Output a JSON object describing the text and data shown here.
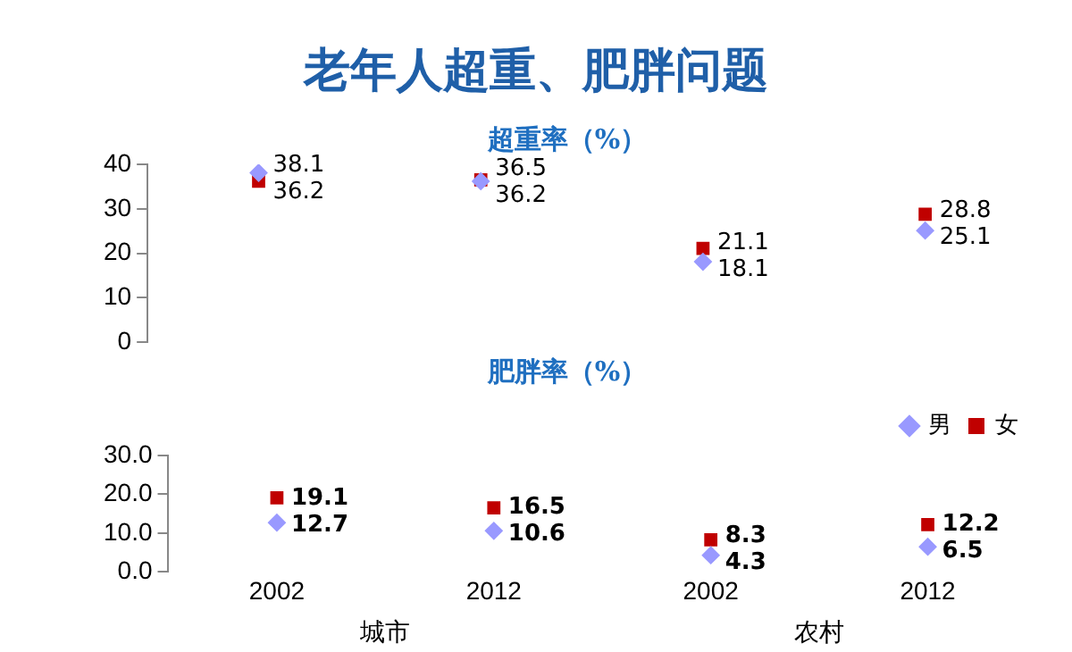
{
  "chart_data": [
    {
      "type": "scatter",
      "title": "老年人超重、肥胖问题",
      "subtitle": "超重率（%）",
      "categories": [
        "2002",
        "2012",
        "2002",
        "2012"
      ],
      "series": [
        {
          "color": "#9999ff",
          "marker": "diamond",
          "values": [
            38.1,
            36.2,
            18.1,
            25.1
          ]
        },
        {
          "color": "#c00000",
          "marker": "square",
          "values": [
            36.2,
            36.5,
            21.1,
            28.8
          ]
        }
      ],
      "ylim": [
        0,
        40
      ],
      "yticks": [
        0,
        10,
        20,
        30,
        40
      ],
      "grid": false,
      "legend": false,
      "data_labels": true,
      "tick_labels": "y"
    },
    {
      "type": "scatter",
      "title": "肥胖率（%）",
      "categories": [
        "2002",
        "2012",
        "2002",
        "2012"
      ],
      "series": [
        {
          "name": "男",
          "color": "#9999ff",
          "marker": "diamond",
          "values": [
            12.7,
            10.6,
            4.3,
            6.5
          ]
        },
        {
          "name": "女",
          "color": "#c00000",
          "marker": "square",
          "values": [
            19.1,
            16.5,
            8.3,
            12.2
          ]
        }
      ],
      "ylim": [
        0,
        30
      ],
      "yticks": [
        {
          "value": 0,
          "label": "0.0"
        },
        {
          "value": 10,
          "label": "10.0"
        },
        {
          "value": 20,
          "label": "20.0"
        },
        {
          "value": 30,
          "label": "30.0"
        }
      ],
      "grid": false,
      "legend": "top right",
      "data_labels": true,
      "annotations": [
        "城市",
        "农村"
      ]
    }
  ]
}
